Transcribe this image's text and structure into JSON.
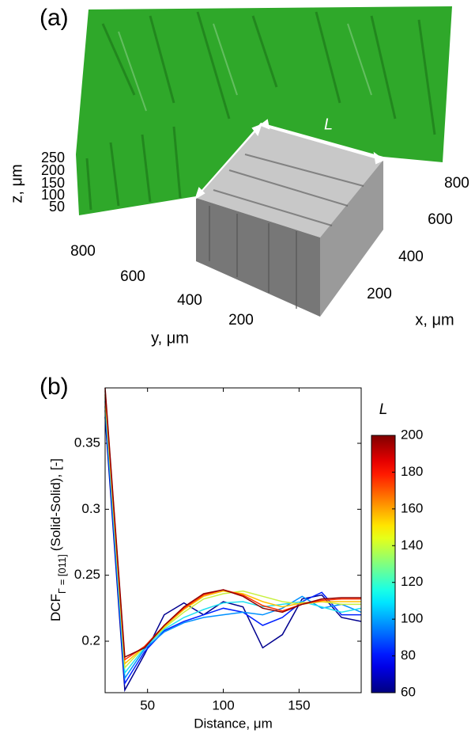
{
  "panel_a": {
    "label": "(a)",
    "arrow_label": "L",
    "z_axis": {
      "label": "z, μm",
      "ticks": [
        250,
        200,
        150,
        100,
        50
      ]
    },
    "y_axis": {
      "label": "y, μm",
      "ticks": [
        800,
        600,
        400,
        200
      ]
    },
    "x_axis": {
      "label": "x, μm",
      "ticks": [
        800,
        600,
        400,
        200
      ]
    }
  },
  "chart_data": {
    "type": "line",
    "panel_label": "(b)",
    "xlabel": "Distance, μm",
    "ylabel": {
      "main": "DCF",
      "subscript": "Γ = [011]",
      "rest": "(Solid-Solid), [-]"
    },
    "x": [
      22,
      35,
      48,
      61,
      74,
      87,
      100,
      113,
      126,
      139,
      152,
      165,
      178,
      191
    ],
    "xlim": [
      22,
      191
    ],
    "xticks": [
      50,
      100,
      150
    ],
    "ylim": [
      0.161,
      0.392
    ],
    "yticks": [
      0.2,
      0.25,
      0.3,
      0.35
    ],
    "series": [
      {
        "color": "#00008f",
        "values": [
          0.37,
          0.163,
          0.19,
          0.22,
          0.229,
          0.22,
          0.23,
          0.226,
          0.195,
          0.205,
          0.232,
          0.235,
          0.218,
          0.215
        ]
      },
      {
        "color": "#0020ff",
        "values": [
          0.375,
          0.168,
          0.192,
          0.208,
          0.215,
          0.22,
          0.225,
          0.222,
          0.212,
          0.218,
          0.23,
          0.237,
          0.22,
          0.22
        ]
      },
      {
        "color": "#0090ff",
        "values": [
          0.378,
          0.172,
          0.194,
          0.207,
          0.214,
          0.218,
          0.22,
          0.222,
          0.22,
          0.225,
          0.234,
          0.225,
          0.228,
          0.222
        ]
      },
      {
        "color": "#20e0f0",
        "values": [
          0.382,
          0.176,
          0.195,
          0.209,
          0.218,
          0.224,
          0.229,
          0.23,
          0.226,
          0.228,
          0.23,
          0.226,
          0.222,
          0.225
        ]
      },
      {
        "color": "#c8f040",
        "values": [
          0.385,
          0.18,
          0.196,
          0.21,
          0.222,
          0.232,
          0.236,
          0.238,
          0.234,
          0.23,
          0.228,
          0.23,
          0.228,
          0.228
        ]
      },
      {
        "color": "#ffc000",
        "values": [
          0.387,
          0.183,
          0.196,
          0.211,
          0.224,
          0.234,
          0.238,
          0.236,
          0.23,
          0.226,
          0.229,
          0.23,
          0.23,
          0.23
        ]
      },
      {
        "color": "#ff3000",
        "values": [
          0.39,
          0.186,
          0.196,
          0.212,
          0.225,
          0.235,
          0.239,
          0.235,
          0.227,
          0.223,
          0.228,
          0.231,
          0.232,
          0.232
        ]
      },
      {
        "color": "#900000",
        "values": [
          0.392,
          0.188,
          0.195,
          0.212,
          0.226,
          0.236,
          0.239,
          0.234,
          0.225,
          0.222,
          0.228,
          0.232,
          0.233,
          0.233
        ]
      }
    ],
    "colorbar": {
      "label": "L",
      "colormap": "jet",
      "lim": [
        60,
        200
      ],
      "ticks": [
        60,
        80,
        100,
        120,
        140,
        160,
        180,
        200
      ]
    }
  }
}
